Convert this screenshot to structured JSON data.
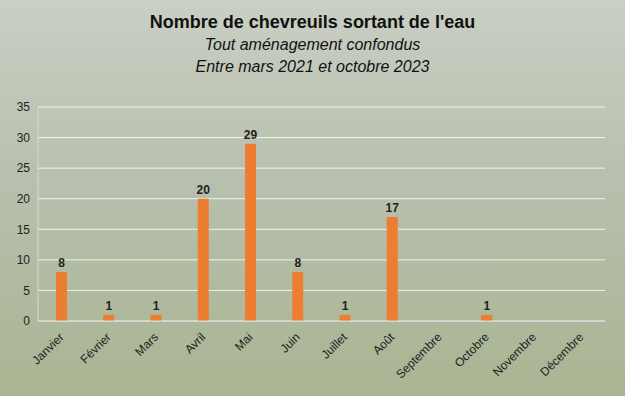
{
  "chart_data": {
    "type": "bar",
    "title": "Nombre de chevreuils sortant de l'eau",
    "subtitle": [
      "Tout aménagement confondus",
      "Entre mars 2021 et octobre 2023"
    ],
    "categories": [
      "Janvier",
      "Février",
      "Mars",
      "Avril",
      "Mai",
      "Juin",
      "Juillet",
      "Août",
      "Septembre",
      "Octobre",
      "Novembre",
      "Décembre"
    ],
    "values": [
      8,
      1,
      1,
      20,
      29,
      8,
      1,
      17,
      null,
      1,
      null,
      null
    ],
    "color": "#ed7d31",
    "ylim": [
      0,
      35
    ],
    "yticks": [
      0,
      5,
      10,
      15,
      20,
      25,
      30,
      35
    ],
    "grid": true,
    "data_labels": true
  }
}
